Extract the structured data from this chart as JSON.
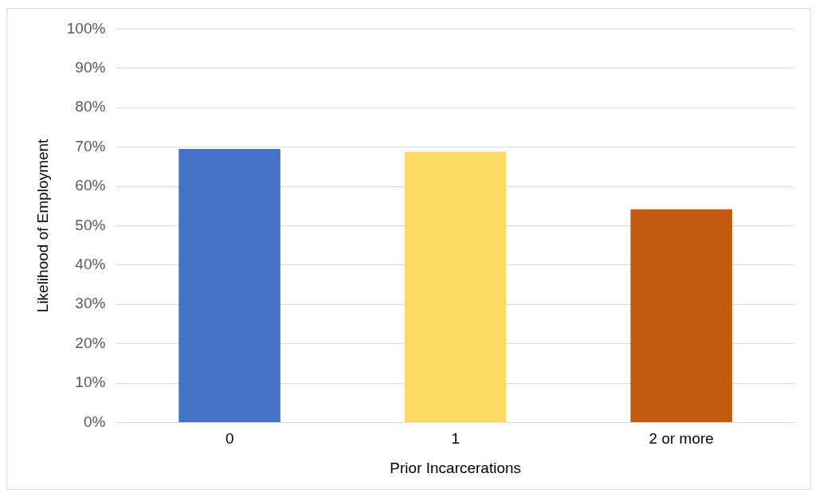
{
  "chart_data": {
    "type": "bar",
    "xlabel": "Prior Incarcerations",
    "ylabel": "Likelihood of Employment",
    "categories": [
      "0",
      "1",
      "2 or more"
    ],
    "values": [
      69.5,
      68.8,
      54.2
    ],
    "colors": [
      "#4472c4",
      "#ffd966",
      "#c55a11"
    ],
    "ylim": [
      0,
      100
    ],
    "yticks": [
      {
        "value": 0,
        "label": "0%"
      },
      {
        "value": 10,
        "label": "10%"
      },
      {
        "value": 20,
        "label": "20%"
      },
      {
        "value": 30,
        "label": "30%"
      },
      {
        "value": 40,
        "label": "40%"
      },
      {
        "value": 50,
        "label": "50%"
      },
      {
        "value": 60,
        "label": "60%"
      },
      {
        "value": 70,
        "label": "70%"
      },
      {
        "value": 80,
        "label": "80%"
      },
      {
        "value": 90,
        "label": "90%"
      },
      {
        "value": 100,
        "label": "100%"
      }
    ],
    "grid": "y",
    "legend": false
  }
}
